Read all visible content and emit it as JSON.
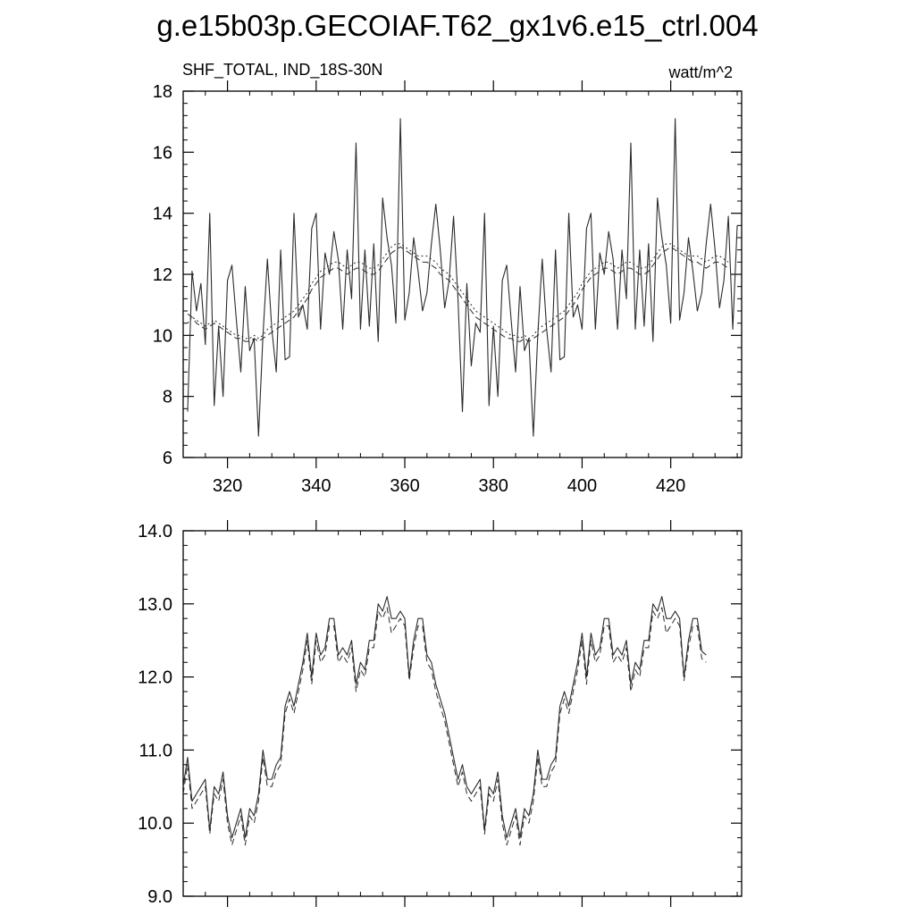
{
  "title": "g.e15b03p.GECOIAF.T62_gx1v6.e15_ctrl.004",
  "colors": {
    "line": "#2b2b2b",
    "axis": "#000000",
    "background": "#ffffff"
  },
  "chart_data": [
    {
      "type": "line",
      "left_label": "SHF_TOTAL, IND_18S-30N",
      "right_label": "watt/m^2",
      "xlim": [
        310,
        436
      ],
      "ylim": [
        6,
        18
      ],
      "x_ticks": [
        320,
        340,
        360,
        380,
        400,
        420
      ],
      "x_tick_labels": [
        "320",
        "340",
        "360",
        "380",
        "400",
        "420"
      ],
      "y_ticks": [
        6,
        8,
        10,
        12,
        14,
        16,
        18
      ],
      "y_tick_labels": [
        "6",
        "8",
        "10",
        "12",
        "14",
        "16",
        "18"
      ],
      "x_start": 311,
      "series": [
        {
          "style": "solid",
          "values": [
            7.5,
            12.1,
            10.8,
            11.7,
            9.7,
            14.0,
            7.7,
            10.3,
            8.0,
            11.8,
            12.3,
            10.5,
            8.8,
            11.6,
            9.5,
            9.9,
            6.7,
            10.0,
            12.5,
            10.2,
            8.8,
            12.8,
            9.2,
            9.3,
            14.0,
            10.6,
            11.0,
            10.2,
            13.5,
            14.0,
            10.2,
            12.7,
            12.0,
            13.4,
            12.5,
            10.2,
            12.8,
            11.2,
            16.3,
            10.2,
            12.8,
            10.3,
            13.0,
            9.8,
            14.5,
            13.2,
            12.3,
            10.4,
            17.1,
            10.5,
            11.4,
            13.2,
            12.1,
            10.8,
            11.4,
            13.0,
            14.3,
            12.8,
            10.9,
            11.8,
            13.9,
            11.2,
            7.5,
            11.7,
            9.0,
            10.4,
            10.1,
            14.0,
            7.7,
            10.3,
            8.0,
            11.8,
            12.3,
            10.5,
            8.8,
            11.6,
            9.5,
            9.9,
            6.7,
            10.0,
            12.5,
            10.2,
            8.8,
            12.8,
            9.2,
            9.3,
            14.0,
            10.6,
            11.0,
            10.2,
            13.5,
            14.0,
            10.2,
            12.7,
            12.0,
            13.4,
            12.5,
            10.2,
            12.8,
            11.2,
            16.3,
            10.2,
            12.8,
            10.3,
            13.0,
            9.8,
            14.5,
            13.2,
            12.3,
            10.4,
            17.1,
            10.5,
            11.4,
            13.2,
            12.1,
            10.8,
            11.4,
            13.0,
            14.3,
            12.8,
            10.9,
            11.8,
            13.9,
            10.2,
            13.6
          ]
        },
        {
          "style": "dashed",
          "values": [
            10.7,
            10.6,
            10.4,
            10.3,
            10.2,
            10.3,
            10.4,
            10.3,
            10.2,
            10.1,
            10.0,
            9.9,
            9.9,
            9.8,
            9.8,
            9.9,
            9.8,
            9.9,
            10.0,
            10.1,
            10.2,
            10.3,
            10.4,
            10.5,
            10.6,
            10.8,
            11.0,
            11.2,
            11.5,
            11.7,
            11.9,
            12.0,
            12.1,
            12.2,
            12.2,
            12.1,
            12.0,
            12.1,
            12.2,
            12.2,
            12.1,
            12.0,
            12.0,
            12.1,
            12.3,
            12.5,
            12.7,
            12.8,
            12.9,
            12.8,
            12.7,
            12.6,
            12.5,
            12.4,
            12.4,
            12.3,
            12.2,
            12.0,
            11.9,
            11.8,
            11.6,
            11.4,
            11.2,
            11.0,
            10.8,
            10.6,
            10.5,
            10.4,
            10.3,
            10.2,
            10.1,
            10.0,
            9.9,
            9.9,
            9.8,
            9.8,
            9.9,
            9.8,
            9.9,
            10.0,
            10.1,
            10.2,
            10.3,
            10.4,
            10.5,
            10.6,
            10.8,
            11.0,
            11.2,
            11.5,
            11.7,
            11.9,
            12.0,
            12.1,
            12.2,
            12.2,
            12.1,
            12.0,
            12.1,
            12.2,
            12.2,
            12.1,
            12.0,
            12.0,
            12.1,
            12.3,
            12.5,
            12.7,
            12.8,
            12.9,
            12.8,
            12.7,
            12.6,
            12.5,
            12.4,
            12.4,
            12.3,
            12.2,
            12.3,
            12.4,
            12.4,
            12.3,
            12.2
          ]
        },
        {
          "style": "dotted",
          "values": [
            10.4,
            10.6,
            10.5,
            10.4,
            10.3,
            10.4,
            10.5,
            10.4,
            10.3,
            10.2,
            10.1,
            10.0,
            10.0,
            9.9,
            9.9,
            10.0,
            9.9,
            10.0,
            10.2,
            10.3,
            10.4,
            10.5,
            10.6,
            10.7,
            10.8,
            11.0,
            11.2,
            11.4,
            11.7,
            11.9,
            12.1,
            12.2,
            12.3,
            12.4,
            12.4,
            12.3,
            12.2,
            12.3,
            12.4,
            12.4,
            12.3,
            12.2,
            12.2,
            12.3,
            12.5,
            12.7,
            12.9,
            13.0,
            13.0,
            12.9,
            12.8,
            12.7,
            12.6,
            12.6,
            12.6,
            12.5,
            12.4,
            12.2,
            12.1,
            12.0,
            11.8,
            11.6,
            11.4,
            11.2,
            11.0,
            10.8,
            10.7,
            10.6,
            10.5,
            10.4,
            10.3,
            10.2,
            10.1,
            10.0,
            10.0,
            9.9,
            10.0,
            9.9,
            10.0,
            10.2,
            10.3,
            10.4,
            10.5,
            10.6,
            10.7,
            10.8,
            11.0,
            11.2,
            11.4,
            11.7,
            11.9,
            12.1,
            12.2,
            12.3,
            12.4,
            12.4,
            12.3,
            12.2,
            12.3,
            12.4,
            12.4,
            12.3,
            12.2,
            12.2,
            12.3,
            12.5,
            12.7,
            12.9,
            13.0,
            13.0,
            12.9,
            12.8,
            12.7,
            12.6,
            12.6,
            12.6,
            12.5,
            12.4,
            12.5,
            12.6,
            12.6,
            12.5,
            12.4
          ]
        }
      ]
    },
    {
      "type": "line",
      "xlim": [
        310,
        436
      ],
      "ylim": [
        9.0,
        14.0
      ],
      "x_ticks": [
        320,
        340,
        360,
        380,
        400,
        420
      ],
      "y_ticks": [
        9.0,
        10.0,
        11.0,
        12.0,
        13.0,
        14.0
      ],
      "y_tick_labels": [
        "9.0",
        "10.0",
        "11.0",
        "12.0",
        "13.0",
        "14.0"
      ],
      "x_start": 310,
      "series": [
        {
          "style": "solid",
          "values": [
            10.5,
            10.9,
            10.3,
            10.4,
            10.5,
            10.6,
            9.9,
            10.5,
            10.4,
            10.7,
            10.1,
            9.8,
            10.0,
            10.2,
            9.8,
            10.2,
            10.1,
            10.4,
            11.0,
            10.6,
            10.6,
            10.8,
            10.9,
            11.6,
            11.8,
            11.6,
            11.9,
            12.2,
            12.6,
            12.0,
            12.6,
            12.3,
            12.4,
            12.8,
            12.8,
            12.3,
            12.4,
            12.3,
            12.5,
            11.9,
            12.2,
            12.1,
            12.5,
            12.5,
            13.0,
            12.9,
            13.1,
            12.8,
            12.8,
            12.9,
            12.8,
            12.0,
            12.5,
            12.8,
            12.8,
            12.3,
            12.2,
            11.9,
            11.7,
            11.5,
            11.2,
            10.9,
            10.6,
            10.8,
            10.5,
            10.4,
            10.5,
            10.6,
            9.9,
            10.5,
            10.4,
            10.7,
            10.1,
            9.8,
            10.0,
            10.2,
            9.8,
            10.2,
            10.1,
            10.4,
            11.0,
            10.6,
            10.6,
            10.8,
            10.9,
            11.6,
            11.8,
            11.6,
            11.9,
            12.2,
            12.6,
            12.0,
            12.6,
            12.3,
            12.4,
            12.8,
            12.8,
            12.3,
            12.4,
            12.3,
            12.5,
            11.9,
            12.2,
            12.1,
            12.5,
            12.5,
            13.0,
            12.9,
            13.1,
            12.8,
            12.8,
            12.9,
            12.8,
            12.0,
            12.5,
            12.8,
            12.8,
            12.35,
            12.3
          ]
        },
        {
          "style": "dashed",
          "values": [
            10.4,
            10.8,
            10.2,
            10.3,
            10.4,
            10.5,
            9.85,
            10.4,
            10.3,
            10.6,
            10.0,
            9.7,
            9.9,
            10.1,
            9.7,
            10.1,
            10.0,
            10.3,
            10.9,
            10.5,
            10.5,
            10.7,
            10.8,
            11.5,
            11.7,
            11.5,
            11.8,
            12.1,
            12.5,
            11.9,
            12.5,
            12.2,
            12.3,
            12.7,
            12.7,
            12.2,
            12.3,
            12.2,
            12.4,
            11.8,
            12.1,
            12.0,
            12.4,
            12.4,
            12.9,
            12.8,
            12.95,
            12.6,
            12.7,
            12.8,
            12.7,
            11.95,
            12.4,
            12.7,
            12.7,
            12.2,
            12.1,
            11.8,
            11.6,
            11.4,
            11.1,
            10.8,
            10.5,
            10.7,
            10.4,
            10.3,
            10.4,
            10.5,
            9.85,
            10.4,
            10.3,
            10.6,
            10.0,
            9.7,
            9.9,
            10.1,
            9.7,
            10.1,
            10.0,
            10.3,
            10.9,
            10.5,
            10.5,
            10.7,
            10.8,
            11.5,
            11.7,
            11.5,
            11.8,
            12.1,
            12.5,
            11.9,
            12.5,
            12.2,
            12.3,
            12.7,
            12.7,
            12.2,
            12.3,
            12.2,
            12.4,
            11.8,
            12.1,
            12.0,
            12.4,
            12.4,
            12.9,
            12.8,
            12.95,
            12.6,
            12.7,
            12.8,
            12.7,
            11.95,
            12.4,
            12.7,
            12.7,
            12.25,
            12.2
          ]
        }
      ]
    }
  ]
}
